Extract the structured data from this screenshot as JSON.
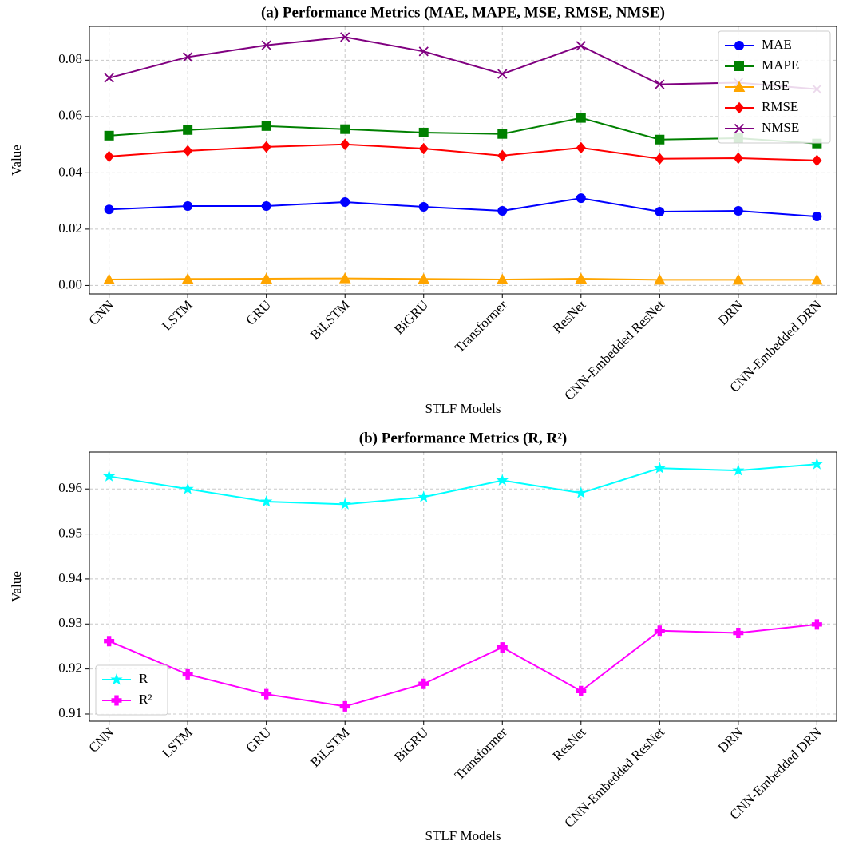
{
  "chart_data": [
    {
      "type": "line",
      "title": "(a) Performance Metrics (MAE, MAPE, MSE, RMSE, NMSE)",
      "x_label": "STLF Models",
      "y_label": "Value",
      "categories": [
        "CNN",
        "LSTM",
        "GRU",
        "BiLSTM",
        "BiGRU",
        "Transformer",
        "ResNet",
        "CNN-Embedded ResNet",
        "DRN",
        "CNN-Embedded DRN"
      ],
      "series": [
        {
          "name": "MAE",
          "color": "#0000ff",
          "marker": "circle",
          "values": [
            0.027,
            0.0282,
            0.0282,
            0.0296,
            0.0279,
            0.0265,
            0.031,
            0.0262,
            0.0265,
            0.0245
          ]
        },
        {
          "name": "MAPE",
          "color": "#008000",
          "marker": "square",
          "values": [
            0.0532,
            0.0552,
            0.0566,
            0.0555,
            0.0543,
            0.0538,
            0.0595,
            0.0518,
            0.0523,
            0.0504
          ]
        },
        {
          "name": "MSE",
          "color": "#ffa500",
          "marker": "triangle",
          "values": [
            0.0021,
            0.0023,
            0.0024,
            0.0025,
            0.0023,
            0.0021,
            0.0024,
            0.002,
            0.002,
            0.002
          ]
        },
        {
          "name": "RMSE",
          "color": "#ff0000",
          "marker": "diamond",
          "values": [
            0.0458,
            0.0478,
            0.0492,
            0.0501,
            0.0486,
            0.0461,
            0.0489,
            0.045,
            0.0452,
            0.0444
          ]
        },
        {
          "name": "NMSE",
          "color": "#800080",
          "marker": "x",
          "values": [
            0.0737,
            0.0811,
            0.0853,
            0.0882,
            0.0831,
            0.0751,
            0.0851,
            0.0714,
            0.072,
            0.0697
          ]
        }
      ],
      "ylim": [
        -0.003,
        0.092
      ],
      "yticks": [
        {
          "value": 0,
          "label": "0.00"
        },
        0.02,
        0.04,
        0.06,
        0.08
      ],
      "grid": true,
      "legend": "upper right"
    },
    {
      "type": "line",
      "title": "(b) Performance Metrics (R, R²)",
      "x_label": "STLF Models",
      "y_label": "Value",
      "categories": [
        "CNN",
        "LSTM",
        "GRU",
        "BiLSTM",
        "BiGRU",
        "Transformer",
        "ResNet",
        "CNN-Embedded ResNet",
        "DRN",
        "CNN-Embedded DRN"
      ],
      "series": [
        {
          "name": "R",
          "color": "#00ffff",
          "marker": "star",
          "values": [
            0.9628,
            0.96,
            0.9572,
            0.9566,
            0.9582,
            0.9619,
            0.9591,
            0.9646,
            0.9641,
            0.9655
          ]
        },
        {
          "name": "R²",
          "color": "#ff00ff",
          "marker": "plus",
          "values": [
            0.9262,
            0.9188,
            0.9144,
            0.9117,
            0.9167,
            0.9248,
            0.9151,
            0.9285,
            0.928,
            0.9299
          ]
        }
      ],
      "ylim": [
        0.9084,
        0.9682
      ],
      "yticks": [
        0.91,
        0.92,
        0.93,
        0.94,
        0.95,
        0.96
      ],
      "grid": true,
      "legend": "lower left"
    }
  ]
}
